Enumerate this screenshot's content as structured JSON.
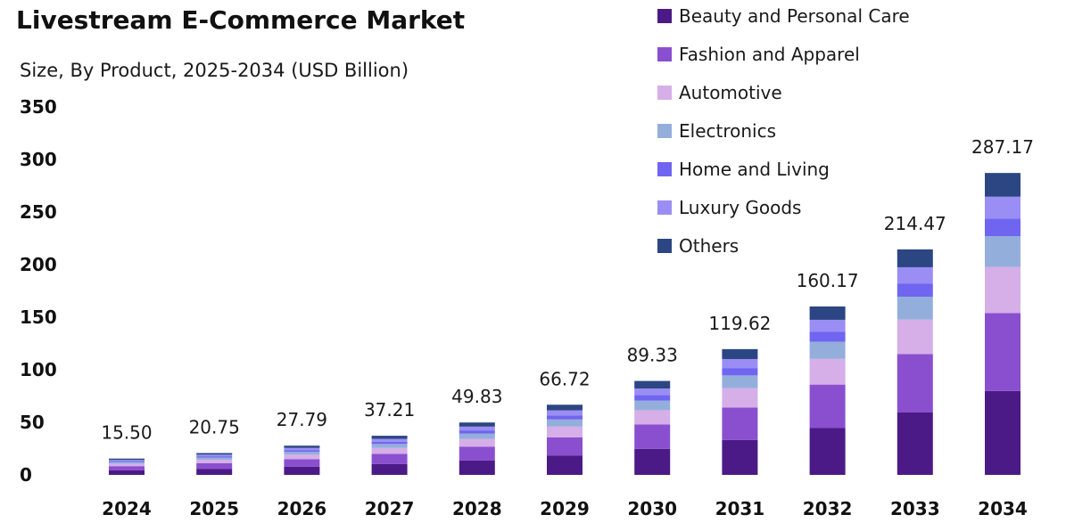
{
  "chart_data": {
    "type": "bar",
    "stacked": true,
    "title": "Livestream E-Commerce Market",
    "subtitle": "Size, By Product, 2025-2034 (USD Billion)",
    "xlabel": "",
    "ylabel": "",
    "ylim": [
      0,
      350
    ],
    "yticks": [
      "0",
      "50",
      "100",
      "150",
      "200",
      "250",
      "300",
      "350"
    ],
    "legend_position": "top-right",
    "categories": [
      "2024",
      "2025",
      "2026",
      "2027",
      "2028",
      "2029",
      "2030",
      "2031",
      "2032",
      "2033",
      "2034"
    ],
    "totals": [
      15.5,
      20.75,
      27.79,
      37.21,
      49.83,
      66.72,
      89.33,
      119.62,
      160.17,
      214.47,
      287.17
    ],
    "total_labels": [
      "15.50",
      "20.75",
      "27.79",
      "37.21",
      "49.83",
      "66.72",
      "89.33",
      "119.62",
      "160.17",
      "214.47",
      "287.17"
    ],
    "series": [
      {
        "name": "Beauty and Personal Care",
        "color": "#4b1a86",
        "values": [
          4.3,
          5.8,
          7.7,
          10.3,
          13.8,
          18.5,
          24.8,
          33.2,
          44.5,
          59.6,
          79.8
        ]
      },
      {
        "name": "Fashion and Apparel",
        "color": "#8a4fcf",
        "values": [
          4.0,
          5.4,
          7.2,
          9.6,
          12.9,
          17.2,
          23.1,
          30.9,
          41.4,
          55.4,
          74.2
        ]
      },
      {
        "name": "Automotive",
        "color": "#d6aee8",
        "values": [
          2.4,
          3.2,
          4.3,
          5.7,
          7.6,
          10.2,
          13.6,
          18.3,
          24.4,
          32.7,
          43.8
        ]
      },
      {
        "name": "Electronics",
        "color": "#94aedc",
        "values": [
          1.6,
          2.1,
          2.8,
          3.8,
          5.1,
          6.8,
          9.1,
          12.2,
          16.3,
          21.8,
          29.2
        ]
      },
      {
        "name": "Home and Living",
        "color": "#7065f0",
        "values": [
          0.9,
          1.2,
          1.6,
          2.2,
          2.9,
          3.9,
          5.2,
          7.0,
          9.4,
          12.6,
          16.9
        ]
      },
      {
        "name": "Luxury Goods",
        "color": "#9a8ef4",
        "values": [
          1.1,
          1.5,
          2.0,
          2.7,
          3.6,
          4.8,
          6.4,
          8.6,
          11.5,
          15.4,
          20.7
        ]
      },
      {
        "name": "Others",
        "color": "#2c4683",
        "values": [
          1.2,
          1.55,
          2.19,
          2.91,
          3.93,
          5.32,
          7.13,
          9.42,
          12.67,
          16.97,
          22.57
        ]
      }
    ]
  }
}
